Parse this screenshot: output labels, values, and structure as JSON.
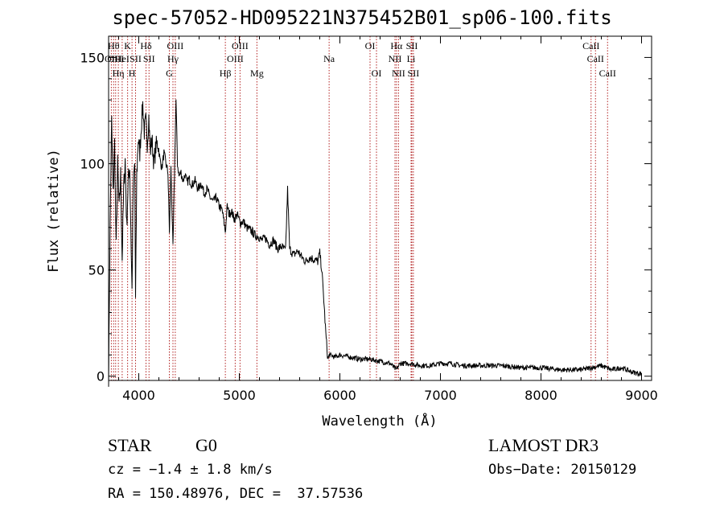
{
  "chart_data": {
    "type": "line",
    "title": "spec-57052-HD095221N375452B01_sp06-100.fits",
    "xlabel": "Wavelength (Å)",
    "ylabel": "Flux (relative)",
    "xlim": [
      3700,
      9100
    ],
    "ylim": [
      -2,
      160
    ],
    "x_ticks": [
      4000,
      5000,
      6000,
      7000,
      8000,
      9000
    ],
    "x_tick_labels": [
      "4000",
      "5000",
      "6000",
      "7000",
      "8000",
      "9000"
    ],
    "y_ticks": [
      0,
      50,
      100,
      150
    ],
    "y_tick_labels": [
      "0",
      "50",
      "100",
      "150"
    ],
    "grid": false,
    "legend": "none",
    "series": [
      {
        "x": [
          3700,
          3715,
          3730,
          3745,
          3760,
          3775,
          3790,
          3805,
          3820,
          3835,
          3850,
          3865,
          3880,
          3895,
          3910,
          3925,
          3933,
          3945,
          3960,
          3968,
          3980,
          3995,
          4010,
          4025,
          4040,
          4055,
          4070,
          4085,
          4100,
          4115,
          4130,
          4150,
          4170,
          4190,
          4210,
          4230,
          4250,
          4270,
          4290,
          4305,
          4320,
          4340,
          4355,
          4370,
          4385,
          4400,
          4420,
          4440,
          4460,
          4480,
          4500,
          4530,
          4560,
          4590,
          4620,
          4650,
          4680,
          4710,
          4740,
          4770,
          4800,
          4830,
          4861,
          4880,
          4900,
          4920,
          4950,
          4980,
          5010,
          5040,
          5070,
          5100,
          5130,
          5160,
          5190,
          5220,
          5260,
          5300,
          5340,
          5380,
          5420,
          5460,
          5480,
          5500,
          5540,
          5580,
          5620,
          5660,
          5700,
          5740,
          5780,
          5800,
          5820,
          5840,
          5860,
          5880,
          5900,
          5950,
          6000,
          6100,
          6200,
          6300,
          6400,
          6500,
          6560,
          6600,
          6700,
          6800,
          6900,
          7000,
          7100,
          7200,
          7400,
          7600,
          7800,
          8000,
          8200,
          8400,
          8500,
          8600,
          8700,
          8800,
          8900,
          9000
        ],
        "y": [
          0,
          70,
          120,
          85,
          110,
          60,
          100,
          78,
          95,
          55,
          88,
          102,
          70,
          92,
          98,
          60,
          40,
          90,
          100,
          35,
          95,
          112,
          105,
          118,
          128,
          115,
          120,
          110,
          122,
          105,
          112,
          100,
          108,
          110,
          102,
          98,
          105,
          100,
          96,
          68,
          98,
          60,
          95,
          130,
          100,
          94,
          96,
          92,
          95,
          91,
          93,
          90,
          92,
          88,
          91,
          86,
          88,
          84,
          82,
          84,
          80,
          78,
          68,
          80,
          76,
          78,
          74,
          76,
          72,
          73,
          70,
          69,
          68,
          66,
          66,
          64,
          65,
          62,
          64,
          60,
          61,
          59,
          88,
          60,
          57,
          59,
          56,
          54,
          56,
          55,
          54,
          58,
          50,
          36,
          20,
          8,
          10,
          9,
          10,
          9,
          8,
          8,
          7,
          6,
          3,
          6,
          6,
          5,
          5,
          6,
          6,
          5,
          5,
          5,
          4,
          4,
          3,
          3,
          4,
          5,
          3,
          4,
          2,
          1
        ]
      }
    ],
    "line_labels": [
      {
        "wavelength": 3727,
        "label": "OII",
        "row": 1
      },
      {
        "wavelength": 3750,
        "label": "Hθ",
        "row": 0
      },
      {
        "wavelength": 3770,
        "label": "OIII",
        "row": 1
      },
      {
        "wavelength": 3797,
        "label": "Hη",
        "row": 2
      },
      {
        "wavelength": 3835,
        "label": "HeI",
        "row": 1
      },
      {
        "wavelength": 3889,
        "label": "K",
        "row": 0
      },
      {
        "wavelength": 3933,
        "label": "H",
        "row": 2
      },
      {
        "wavelength": 3968,
        "label": "SII",
        "row": 1
      },
      {
        "wavelength": 4072,
        "label": "Hδ",
        "row": 0
      },
      {
        "wavelength": 4102,
        "label": "SII",
        "row": 1
      },
      {
        "wavelength": 4304,
        "label": "G",
        "row": 2
      },
      {
        "wavelength": 4340,
        "label": "Hγ",
        "row": 1
      },
      {
        "wavelength": 4363,
        "label": "OIII",
        "row": 0
      },
      {
        "wavelength": 4861,
        "label": "Hβ",
        "row": 2
      },
      {
        "wavelength": 4959,
        "label": "OIII",
        "row": 1
      },
      {
        "wavelength": 5007,
        "label": "OIII",
        "row": 0
      },
      {
        "wavelength": 5175,
        "label": "Mg",
        "row": 2
      },
      {
        "wavelength": 5893,
        "label": "Na",
        "row": 1
      },
      {
        "wavelength": 6300,
        "label": "OI",
        "row": 0
      },
      {
        "wavelength": 6364,
        "label": "OI",
        "row": 2
      },
      {
        "wavelength": 6548,
        "label": "NII",
        "row": 1
      },
      {
        "wavelength": 6563,
        "label": "Hα",
        "row": 0
      },
      {
        "wavelength": 6583,
        "label": "NII",
        "row": 2
      },
      {
        "wavelength": 6708,
        "label": "Li",
        "row": 1
      },
      {
        "wavelength": 6716,
        "label": "SII",
        "row": 0
      },
      {
        "wavelength": 6731,
        "label": "SII",
        "row": 2
      },
      {
        "wavelength": 8498,
        "label": "CaII",
        "row": 0
      },
      {
        "wavelength": 8542,
        "label": "CaII",
        "row": 1
      },
      {
        "wavelength": 8662,
        "label": "CaII",
        "row": 2
      }
    ],
    "line_color": "#000000",
    "marker_color": "#b22222"
  },
  "info": {
    "class": "STAR",
    "subclass": "G0",
    "survey": "LAMOST DR3",
    "cz": "cz = −1.4 ± 1.8 km/s",
    "obs_date": "Obs−Date: 20150129",
    "radec": "RA = 150.48976, DEC =  37.57536"
  }
}
